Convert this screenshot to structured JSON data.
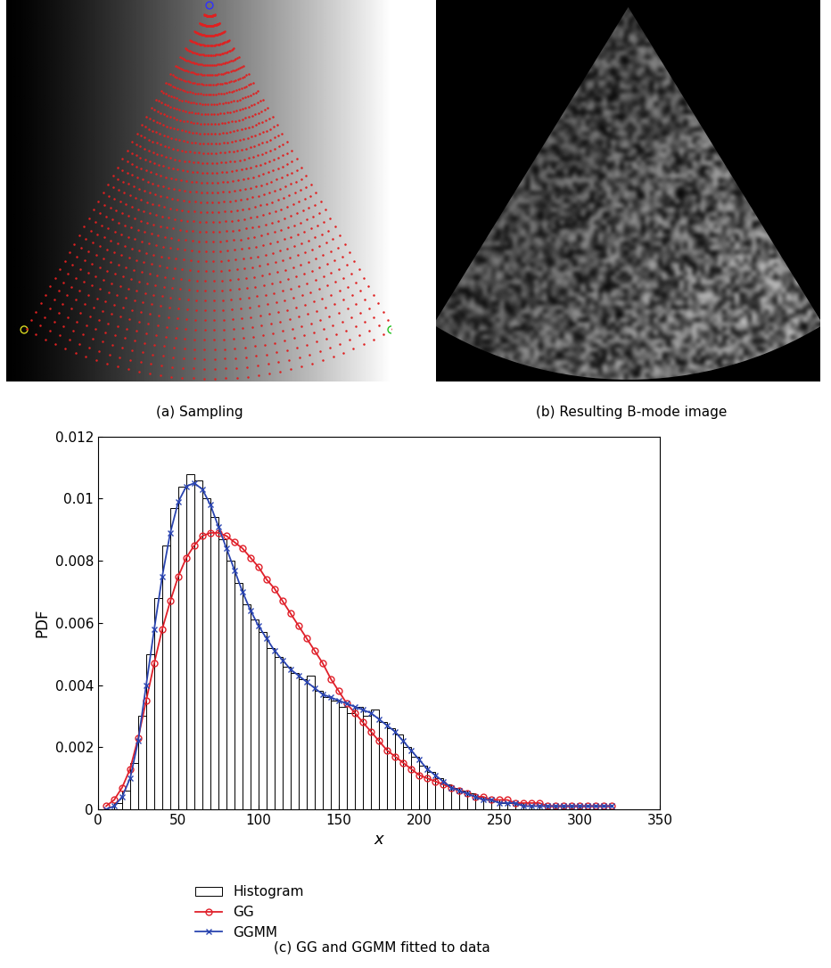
{
  "chart_data": [
    {
      "type": "image",
      "caption": "(a) Sampling"
    },
    {
      "type": "image",
      "caption": "(b) Resulting B-mode image"
    },
    {
      "type": "histogram",
      "caption": "(c) GG and GGMM fitted to data",
      "x_label": "x",
      "y_label": "PDF",
      "xlim": [
        0,
        350
      ],
      "xticks": [
        0,
        50,
        100,
        150,
        200,
        250,
        300,
        350
      ],
      "ylim": [
        0,
        0.012
      ],
      "yticks": [
        0,
        0.002,
        0.004,
        0.006,
        0.008,
        0.01,
        0.012
      ],
      "legend": "upper left",
      "series": [
        {
          "name": "Histogram",
          "type": "histogram",
          "color": "#000000",
          "bins": [
            5,
            10,
            15,
            20,
            25,
            30,
            35,
            40,
            45,
            50,
            55,
            60,
            65,
            70,
            75,
            80,
            85,
            90,
            95,
            100,
            105,
            110,
            115,
            120,
            125,
            130,
            135,
            140,
            145,
            150,
            155,
            160,
            165,
            170,
            175,
            180,
            185,
            190,
            195,
            200,
            205,
            210,
            215,
            220,
            225,
            230,
            235,
            240,
            245,
            250,
            255,
            260,
            265,
            270,
            275,
            280,
            285,
            290,
            295,
            300,
            305,
            310,
            315,
            320
          ],
          "values": [
            0,
            0.0002,
            0.0006,
            0.0015,
            0.003,
            0.005,
            0.0068,
            0.0085,
            0.0097,
            0.0104,
            0.0108,
            0.0106,
            0.01,
            0.0094,
            0.0087,
            0.008,
            0.0073,
            0.0066,
            0.0061,
            0.0057,
            0.0052,
            0.0049,
            0.0046,
            0.0044,
            0.0042,
            0.0043,
            0.0038,
            0.0036,
            0.0035,
            0.0033,
            0.0031,
            0.0033,
            0.003,
            0.0032,
            0.0028,
            0.0026,
            0.0024,
            0.002,
            0.0017,
            0.0014,
            0.0012,
            0.001,
            0.0008,
            0.0007,
            0.0006,
            0.0005,
            0.0004,
            0.0003,
            0.0003,
            0.0002,
            0.0002,
            0.0002,
            0.0001,
            0.0001,
            0.0001,
            0.0001,
            0.0001,
            0.0001,
            0,
            0,
            0,
            0,
            0
          ]
        },
        {
          "name": "GG",
          "type": "line",
          "color": "#e0202a",
          "marker": "o",
          "x": [
            5,
            10,
            15,
            20,
            25,
            30,
            35,
            40,
            45,
            50,
            55,
            60,
            65,
            70,
            75,
            80,
            85,
            90,
            95,
            100,
            105,
            110,
            115,
            120,
            125,
            130,
            135,
            140,
            145,
            150,
            155,
            160,
            165,
            170,
            175,
            180,
            185,
            190,
            195,
            200,
            205,
            210,
            215,
            220,
            225,
            230,
            235,
            240,
            245,
            250,
            255,
            260,
            265,
            270,
            275,
            280,
            285,
            290,
            295,
            300,
            305,
            310,
            315,
            320
          ],
          "values": [
            0.0001,
            0.0003,
            0.0007,
            0.0013,
            0.0023,
            0.0035,
            0.0047,
            0.0058,
            0.0067,
            0.0075,
            0.0081,
            0.0085,
            0.0088,
            0.0089,
            0.0089,
            0.0088,
            0.0086,
            0.0084,
            0.0081,
            0.0078,
            0.0074,
            0.0071,
            0.0067,
            0.0063,
            0.0059,
            0.0055,
            0.0051,
            0.0047,
            0.0042,
            0.0038,
            0.0034,
            0.0031,
            0.0028,
            0.0025,
            0.0022,
            0.0019,
            0.0017,
            0.0015,
            0.0013,
            0.0011,
            0.001,
            0.0009,
            0.0008,
            0.0007,
            0.0006,
            0.0005,
            0.0004,
            0.0004,
            0.0003,
            0.0003,
            0.0003,
            0.0002,
            0.0002,
            0.0002,
            0.0002,
            0.0001,
            0.0001,
            0.0001,
            0.0001,
            0.0001,
            0.0001,
            0.0001,
            0.0001,
            0.0001
          ]
        },
        {
          "name": "GGMM",
          "type": "line",
          "color": "#2b45b0",
          "marker": "x",
          "x": [
            5,
            10,
            15,
            20,
            25,
            30,
            35,
            40,
            45,
            50,
            55,
            60,
            65,
            70,
            75,
            80,
            85,
            90,
            95,
            100,
            105,
            110,
            115,
            120,
            125,
            130,
            135,
            140,
            145,
            150,
            155,
            160,
            165,
            170,
            175,
            180,
            185,
            190,
            195,
            200,
            205,
            210,
            215,
            220,
            225,
            230,
            235,
            240,
            245,
            250,
            255,
            260,
            265,
            270,
            275,
            280,
            285,
            290,
            295,
            300,
            305,
            310,
            315,
            320
          ],
          "values": [
            0,
            0.0001,
            0.0004,
            0.001,
            0.0022,
            0.004,
            0.0058,
            0.0075,
            0.0089,
            0.0099,
            0.0104,
            0.0105,
            0.0103,
            0.0098,
            0.0091,
            0.0084,
            0.0077,
            0.007,
            0.0064,
            0.0059,
            0.0055,
            0.0051,
            0.0048,
            0.0045,
            0.0043,
            0.0041,
            0.0039,
            0.0037,
            0.0036,
            0.0035,
            0.0034,
            0.0033,
            0.0032,
            0.0031,
            0.0029,
            0.0027,
            0.0025,
            0.0022,
            0.0019,
            0.0016,
            0.0013,
            0.0011,
            0.0009,
            0.0007,
            0.0006,
            0.0005,
            0.0004,
            0.0003,
            0.0003,
            0.0002,
            0.0002,
            0.0002,
            0.0001,
            0.0001,
            0.0001,
            0.0001,
            0.0001,
            0.0001,
            0.0001,
            0.0001,
            0.0001,
            0.0001,
            0.0001,
            0.0001
          ]
        }
      ]
    }
  ]
}
